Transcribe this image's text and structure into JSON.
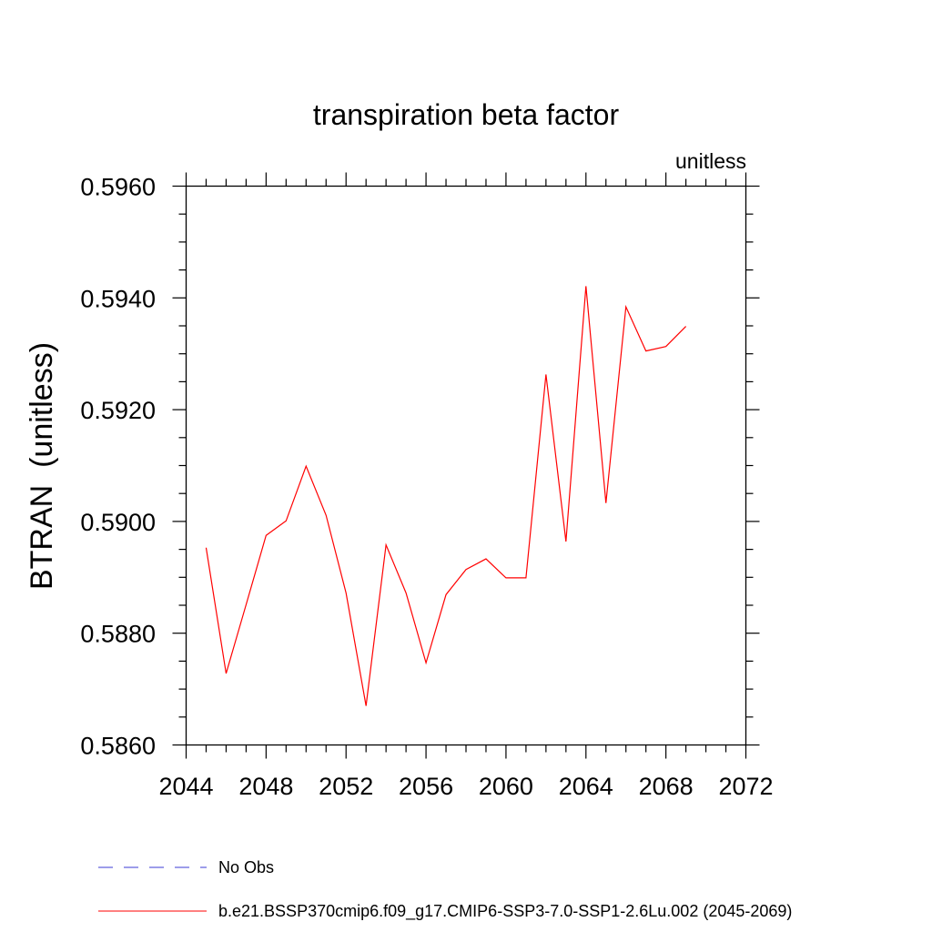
{
  "chart_data": {
    "type": "line",
    "title": "transpiration beta factor",
    "units_label": "unitless",
    "ylabel": "BTRAN  (unitless)",
    "xlabel": "",
    "xlim": [
      2044,
      2072
    ],
    "ylim": [
      0.586,
      0.596
    ],
    "x_ticks": [
      2044,
      2048,
      2052,
      2056,
      2060,
      2064,
      2068,
      2072
    ],
    "x_tick_labels": [
      "2044",
      "2048",
      "2052",
      "2056",
      "2060",
      "2064",
      "2068",
      "2072"
    ],
    "x_minor_step": 1,
    "y_ticks": [
      0.586,
      0.588,
      0.59,
      0.592,
      0.594,
      0.596
    ],
    "y_tick_labels": [
      "0.5860",
      "0.5880",
      "0.5900",
      "0.5920",
      "0.5940",
      "0.5960"
    ],
    "y_minor_step": 0.0005,
    "grid": false,
    "legend_position": "bottom",
    "series": [
      {
        "name": "No Obs",
        "color": "#3b3bd6",
        "dash": "dashed",
        "x": [],
        "values": []
      },
      {
        "name": "b.e21.BSSP370cmip6.f09_g17.CMIP6-SSP3-7.0-SSP1-2.6Lu.002 (2045-2069)",
        "color": "#ff0000",
        "dash": "solid",
        "x": [
          2045,
          2046,
          2047,
          2048,
          2049,
          2050,
          2051,
          2052,
          2053,
          2054,
          2055,
          2056,
          2057,
          2058,
          2059,
          2060,
          2061,
          2062,
          2063,
          2064,
          2065,
          2066,
          2067,
          2068,
          2069
        ],
        "values": [
          0.58953,
          0.58728,
          0.58851,
          0.58975,
          0.59001,
          0.59099,
          0.59011,
          0.58872,
          0.5867,
          0.58958,
          0.58872,
          0.58747,
          0.58869,
          0.58914,
          0.58933,
          0.58899,
          0.58899,
          0.59263,
          0.58964,
          0.59421,
          0.59033,
          0.59384,
          0.59305,
          0.59313,
          0.59349
        ]
      }
    ]
  }
}
